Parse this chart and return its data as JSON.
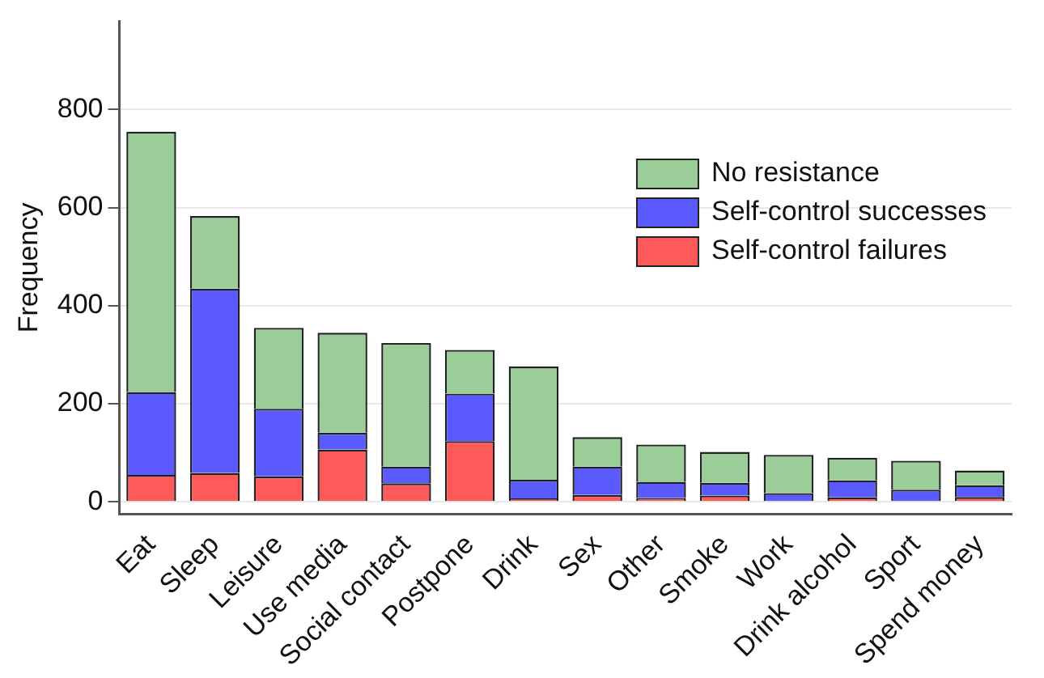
{
  "chart_data": {
    "type": "bar",
    "stacked": true,
    "ylabel": "Frequency",
    "categories": [
      "Eat",
      "Sleep",
      "Leisure",
      "Use media",
      "Social contact",
      "Postpone",
      "Drink",
      "Sex",
      "Other",
      "Smoke",
      "Work",
      "Drink alcohol",
      "Sport",
      "Spend money"
    ],
    "series": [
      {
        "name": "Self-control failures",
        "color": "#ff5a5a",
        "values": [
          55,
          59,
          52,
          107,
          38,
          124,
          7,
          14,
          8,
          13,
          null,
          9,
          null,
          10
        ]
      },
      {
        "name": "Self-control successes",
        "color": "#5a5aff",
        "values": [
          169,
          376,
          138,
          34,
          34,
          97,
          38,
          58,
          33,
          26,
          18,
          35,
          25,
          24
        ]
      },
      {
        "name": "No resistance",
        "color": "#9acd98",
        "values": [
          531,
          148,
          165,
          204,
          252,
          89,
          231,
          60,
          76,
          63,
          78,
          46,
          59,
          30
        ]
      }
    ],
    "ylim": [
      -25,
      980
    ],
    "yticks": [
      0,
      200,
      400,
      600,
      800
    ],
    "grid": "y",
    "legend": "right"
  }
}
